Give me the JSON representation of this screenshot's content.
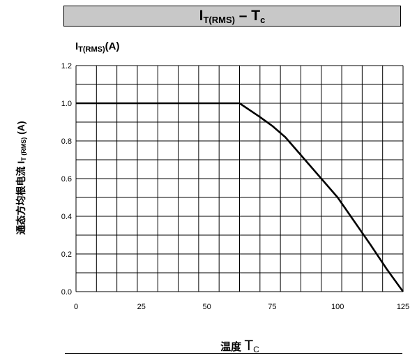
{
  "header": {
    "title_main": "I",
    "title_sub": "T(RMS)",
    "title_rest": " – T",
    "title_rest_sub": "c"
  },
  "axes": {
    "y_unit_main": "I",
    "y_unit_sub": "T(RMS)",
    "y_unit_rest": "(A)",
    "y_label_main": "通态方均根电流 I",
    "y_label_sub": "T (RMS)",
    "y_label_rest": " (A)",
    "x_label_cn": "温度 ",
    "x_label_main": "T",
    "x_label_sub": "C"
  },
  "chart_data": {
    "type": "line",
    "title": "IT(RMS) – Tc",
    "xlabel": "温度 TC",
    "ylabel": "通态方均根电流 IT (RMS) (A)",
    "xlim": [
      0,
      125
    ],
    "ylim": [
      0,
      1.2
    ],
    "x_ticks": [
      "0",
      "25",
      "50",
      "75",
      "100",
      "125"
    ],
    "y_ticks": [
      "0.0",
      "0.2",
      "0.4",
      "0.6",
      "0.8",
      "1.0",
      "1.2"
    ],
    "grid": true,
    "series": [
      {
        "x": [
          0,
          62.5,
          70,
          75,
          80,
          87.5,
          95,
          100,
          105,
          112.5,
          118.75,
          125
        ],
        "y": [
          1.0,
          1.0,
          0.93,
          0.88,
          0.82,
          0.7,
          0.58,
          0.5,
          0.4,
          0.25,
          0.12,
          0.0
        ]
      }
    ]
  }
}
